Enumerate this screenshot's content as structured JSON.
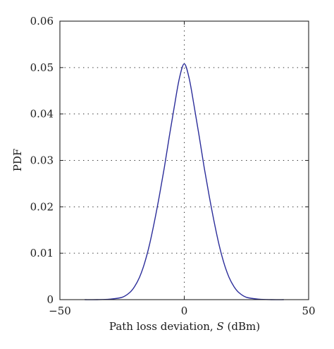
{
  "chart_data": {
    "type": "line",
    "title": "",
    "xlabel_prefix": "Path loss deviation, ",
    "xlabel_var": "S",
    "xlabel_suffix": " (dBm)",
    "ylabel": "PDF",
    "xlim": [
      -50,
      50
    ],
    "ylim": [
      0,
      0.06
    ],
    "xticks": [
      -50,
      0,
      50
    ],
    "xtick_labels": [
      "−50",
      "0",
      "50"
    ],
    "yticks": [
      0,
      0.01,
      0.02,
      0.03,
      0.04,
      0.05,
      0.06
    ],
    "ytick_labels": [
      "0",
      "0.01",
      "0.02",
      "0.03",
      "0.04",
      "0.05",
      "0.06"
    ],
    "grid": "dotted at major ticks",
    "series": [
      {
        "color": "#2b2d9a",
        "x": [
          -40,
          -35,
          -30,
          -25,
          -22,
          -20,
          -18,
          -16,
          -14,
          -12,
          -10,
          -8,
          -6,
          -4,
          -2,
          0,
          2,
          4,
          6,
          8,
          10,
          12,
          14,
          16,
          18,
          20,
          22,
          25,
          30,
          35,
          40
        ],
        "y": [
          0.0,
          0.0,
          0.0001,
          0.0005,
          0.0015,
          0.0028,
          0.0048,
          0.0078,
          0.0118,
          0.0168,
          0.0224,
          0.0285,
          0.0352,
          0.0416,
          0.0476,
          0.0508,
          0.0476,
          0.0416,
          0.0352,
          0.0285,
          0.0224,
          0.0168,
          0.0118,
          0.0078,
          0.0048,
          0.0028,
          0.0015,
          0.0005,
          0.0001,
          0.0,
          0.0
        ]
      }
    ]
  }
}
